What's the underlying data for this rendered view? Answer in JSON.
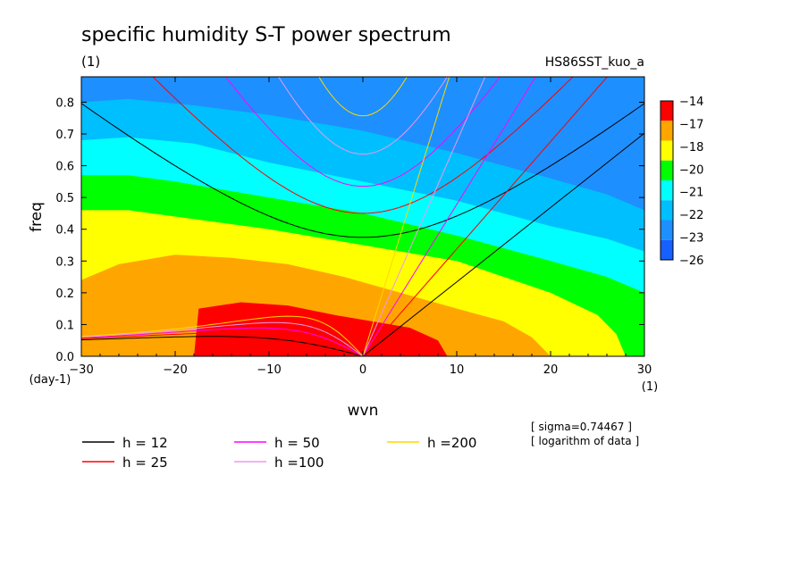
{
  "chart_data": {
    "type": "heatmap",
    "title": "specific humidity S-T power spectrum",
    "units_label": "(1)",
    "run_label": "HS86SST_kuo_a",
    "xlabel": "wvn",
    "ylabel": "freq",
    "x_unit_label": "(1)",
    "y_unit_label": "(day-1)",
    "xlim": [
      -30,
      30
    ],
    "ylim": [
      0,
      0.88
    ],
    "x_ticks": [
      "−30",
      "−20",
      "−10",
      "0",
      "10",
      "20",
      "30"
    ],
    "x_tick_values": [
      -30,
      -20,
      -10,
      0,
      10,
      20,
      30
    ],
    "y_ticks": [
      "0.0",
      "0.1",
      "0.2",
      "0.3",
      "0.4",
      "0.5",
      "0.6",
      "0.7",
      "0.8"
    ],
    "y_tick_values": [
      0,
      0.1,
      0.2,
      0.3,
      0.4,
      0.5,
      0.6,
      0.7,
      0.8
    ],
    "colorbar": {
      "labels": [
        "−14",
        "−17",
        "−18",
        "−20",
        "−21",
        "−22",
        "−23",
        "−26"
      ],
      "colors": [
        "#ff0000",
        "#ffa500",
        "#ffff00",
        "#00ff00",
        "#00ffff",
        "#00bfff",
        "#1e8fff",
        "#1560ff"
      ]
    },
    "contour_bands": [
      {
        "level": "−14",
        "color": "#ff0000",
        "upper_boundary": [
          [
            -18,
            0
          ],
          [
            -17.5,
            0.15
          ],
          [
            -13,
            0.17
          ],
          [
            -8,
            0.16
          ],
          [
            -3,
            0.13
          ],
          [
            1,
            0.11
          ],
          [
            5,
            0.09
          ],
          [
            8,
            0.05
          ],
          [
            9,
            0
          ]
        ]
      },
      {
        "level": "−17",
        "color": "#ffa500",
        "upper_boundary": [
          [
            -30,
            0.24
          ],
          [
            -26,
            0.29
          ],
          [
            -20,
            0.32
          ],
          [
            -14,
            0.31
          ],
          [
            -8,
            0.29
          ],
          [
            -2,
            0.25
          ],
          [
            4,
            0.2
          ],
          [
            10,
            0.15
          ],
          [
            15,
            0.11
          ],
          [
            18,
            0.06
          ],
          [
            20,
            0
          ]
        ]
      },
      {
        "level": "−18",
        "color": "#ffff00",
        "upper_boundary": [
          [
            -30,
            0.46
          ],
          [
            -25,
            0.46
          ],
          [
            -20,
            0.44
          ],
          [
            -10,
            0.4
          ],
          [
            0,
            0.35
          ],
          [
            10,
            0.3
          ],
          [
            20,
            0.2
          ],
          [
            25,
            0.13
          ],
          [
            27,
            0.07
          ],
          [
            28,
            0
          ]
        ]
      },
      {
        "level": "−20",
        "color": "#00ff00",
        "upper_boundary": [
          [
            -30,
            0.57
          ],
          [
            -25,
            0.57
          ],
          [
            -20,
            0.55
          ],
          [
            -10,
            0.5
          ],
          [
            0,
            0.45
          ],
          [
            10,
            0.38
          ],
          [
            20,
            0.3
          ],
          [
            26,
            0.25
          ],
          [
            30,
            0.2
          ]
        ]
      },
      {
        "level": "−21",
        "color": "#00ffff",
        "upper_boundary": [
          [
            -30,
            0.68
          ],
          [
            -25,
            0.69
          ],
          [
            -18,
            0.67
          ],
          [
            -10,
            0.61
          ],
          [
            0,
            0.55
          ],
          [
            10,
            0.49
          ],
          [
            20,
            0.41
          ],
          [
            26,
            0.37
          ],
          [
            30,
            0.33
          ]
        ]
      },
      {
        "level": "−22",
        "color": "#00bfff",
        "upper_boundary": [
          [
            -30,
            0.8
          ],
          [
            -25,
            0.81
          ],
          [
            -18,
            0.79
          ],
          [
            -10,
            0.76
          ],
          [
            0,
            0.71
          ],
          [
            10,
            0.64
          ],
          [
            20,
            0.56
          ],
          [
            26,
            0.51
          ],
          [
            30,
            0.46
          ]
        ]
      },
      {
        "level": "−23",
        "color": "#1e8fff",
        "upper_boundary": [
          [
            -30,
            0.88
          ],
          [
            30,
            0.88
          ]
        ]
      }
    ],
    "series": [
      {
        "name": "h = 12",
        "color": "#000000"
      },
      {
        "name": "h = 25",
        "color": "#ff0000"
      },
      {
        "name": "h = 50",
        "color": "#ff00ff"
      },
      {
        "name": "h =100",
        "color": "#ee99ee"
      },
      {
        "name": "h =200",
        "color": "#ffd700"
      }
    ],
    "dispersion_depths": [
      12,
      25,
      50,
      100,
      200
    ],
    "annotations": [
      "[ sigma=0.74467 ]",
      "[ logarithm of data ]"
    ]
  }
}
